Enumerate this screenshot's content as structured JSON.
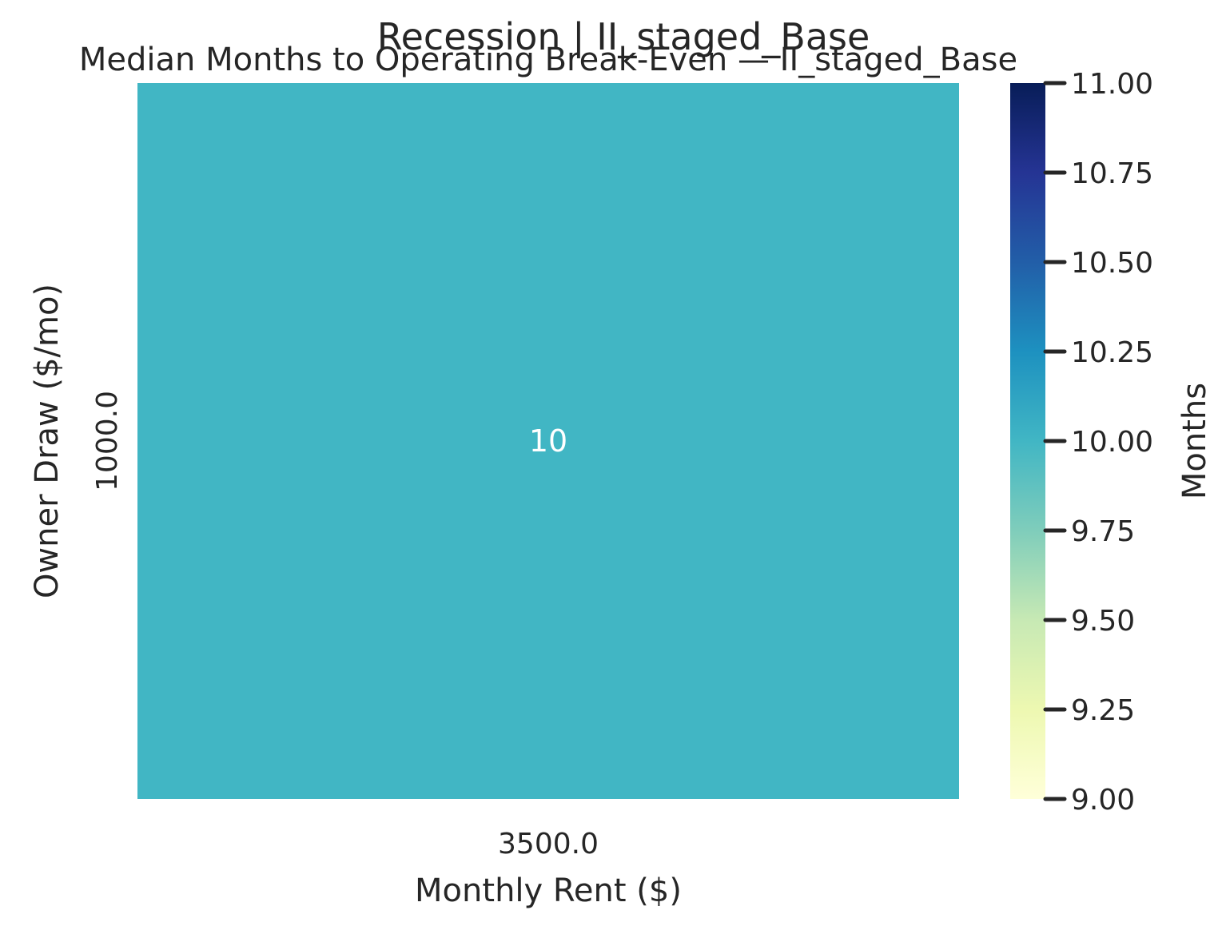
{
  "chart_data": {
    "type": "heatmap",
    "suptitle": "Recession | II_staged_Base",
    "title": "Median Months to Operating Break-Even — II_staged_Base",
    "xlabel": "Monthly Rent ($)",
    "ylabel": "Owner Draw ($/mo)",
    "x_categories": [
      "3500.0"
    ],
    "y_categories": [
      "1000.0"
    ],
    "values": [
      [
        10
      ]
    ],
    "cell_labels": [
      [
        "10"
      ]
    ],
    "colorbar": {
      "label": "Months",
      "range": [
        9.0,
        11.0
      ],
      "ticks": [
        9.0,
        9.25,
        9.5,
        9.75,
        10.0,
        10.25,
        10.5,
        10.75,
        11.0
      ],
      "tick_labels": [
        "9.00",
        "9.25",
        "9.50",
        "9.75",
        "10.00",
        "10.25",
        "10.50",
        "10.75",
        "11.00"
      ],
      "colormap": "YlGnBu",
      "stops": [
        "#ffffd9",
        "#edf8b1",
        "#c7e9b4",
        "#7fcdbb",
        "#41b6c4",
        "#1d91c0",
        "#225ea8",
        "#253494",
        "#081d58"
      ]
    }
  }
}
